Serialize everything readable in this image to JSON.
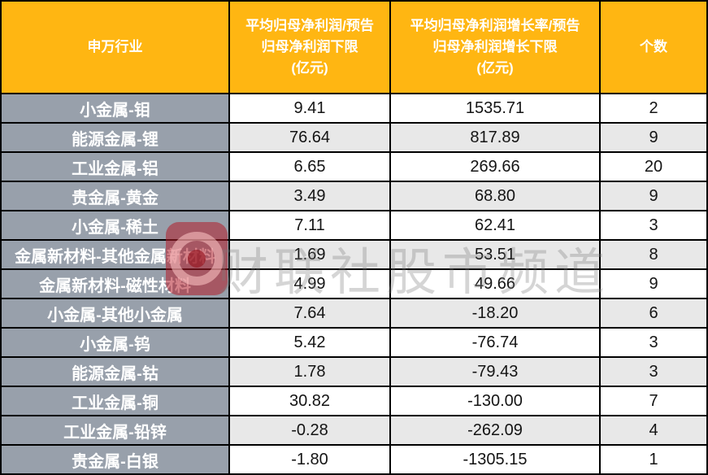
{
  "chart_data": {
    "type": "table",
    "title": "",
    "columns": [
      "申万行业",
      "平均归母净利润/预告\n归母净利润下限\n(亿元)",
      "平均归母净利润增长率/预告\n归母净利润增长下限\n(亿元)",
      "个数"
    ],
    "rows": [
      {
        "industry": "小金属-钼",
        "profit": "9.41",
        "growth": "1535.71",
        "count": "2"
      },
      {
        "industry": "能源金属-锂",
        "profit": "76.64",
        "growth": "817.89",
        "count": "9"
      },
      {
        "industry": "工业金属-铝",
        "profit": "6.65",
        "growth": "269.66",
        "count": "20"
      },
      {
        "industry": "贵金属-黄金",
        "profit": "3.49",
        "growth": "68.80",
        "count": "9"
      },
      {
        "industry": "小金属-稀土",
        "profit": "7.11",
        "growth": "62.41",
        "count": "3"
      },
      {
        "industry": "金属新材料-其他金属新材料",
        "profit": "1.69",
        "growth": "53.51",
        "count": "8"
      },
      {
        "industry": "金属新材料-磁性材料",
        "profit": "4.99",
        "growth": "49.66",
        "count": "9"
      },
      {
        "industry": "小金属-其他小金属",
        "profit": "7.64",
        "growth": "-18.20",
        "count": "6"
      },
      {
        "industry": "小金属-钨",
        "profit": "5.42",
        "growth": "-76.74",
        "count": "3"
      },
      {
        "industry": "能源金属-钴",
        "profit": "1.78",
        "growth": "-79.43",
        "count": "3"
      },
      {
        "industry": "工业金属-铜",
        "profit": "30.82",
        "growth": "-130.00",
        "count": "7"
      },
      {
        "industry": "工业金属-铅锌",
        "profit": "-0.28",
        "growth": "-262.09",
        "count": "4"
      },
      {
        "industry": "贵金属-白银",
        "profit": "-1.80",
        "growth": "-1305.15",
        "count": "1"
      }
    ]
  },
  "watermark": {
    "text": "财联社股市频道",
    "logo": "cailian-press-logo"
  },
  "colors": {
    "header_bg": "#FFB612",
    "industry_bg": "#98A0AB",
    "row_alt_bg": "#E8E8E8",
    "border": "#000000",
    "watermark_red": "#B21C28"
  }
}
